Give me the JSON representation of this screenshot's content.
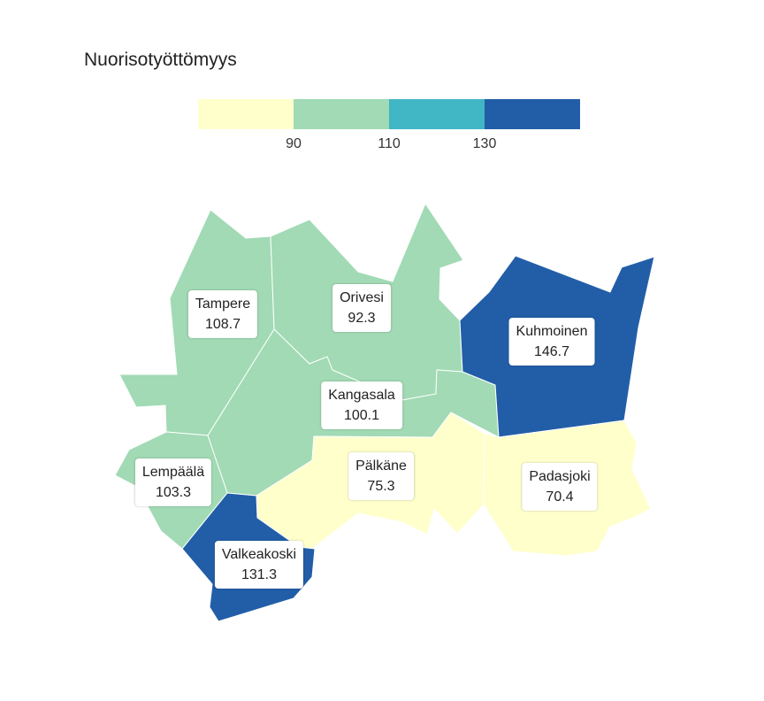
{
  "title": "Nuorisotyöttömyys",
  "legend": {
    "colors": [
      "#ffffcc",
      "#a1dab4",
      "#41b6c4",
      "#225ea8"
    ],
    "ticks": [
      "90",
      "110",
      "130"
    ]
  },
  "regions": [
    {
      "name": "Tampere",
      "value": "108.7",
      "color": "#a1dab4"
    },
    {
      "name": "Orivesi",
      "value": "92.3",
      "color": "#a1dab4"
    },
    {
      "name": "Kuhmoinen",
      "value": "146.7",
      "color": "#225ea8"
    },
    {
      "name": "Kangasala",
      "value": "100.1",
      "color": "#a1dab4"
    },
    {
      "name": "Lempäälä",
      "value": "103.3",
      "color": "#a1dab4"
    },
    {
      "name": "Pälkäne",
      "value": "75.3",
      "color": "#ffffcc"
    },
    {
      "name": "Padasjoki",
      "value": "70.4",
      "color": "#ffffcc"
    },
    {
      "name": "Valkeakoski",
      "value": "131.3",
      "color": "#225ea8"
    }
  ]
}
